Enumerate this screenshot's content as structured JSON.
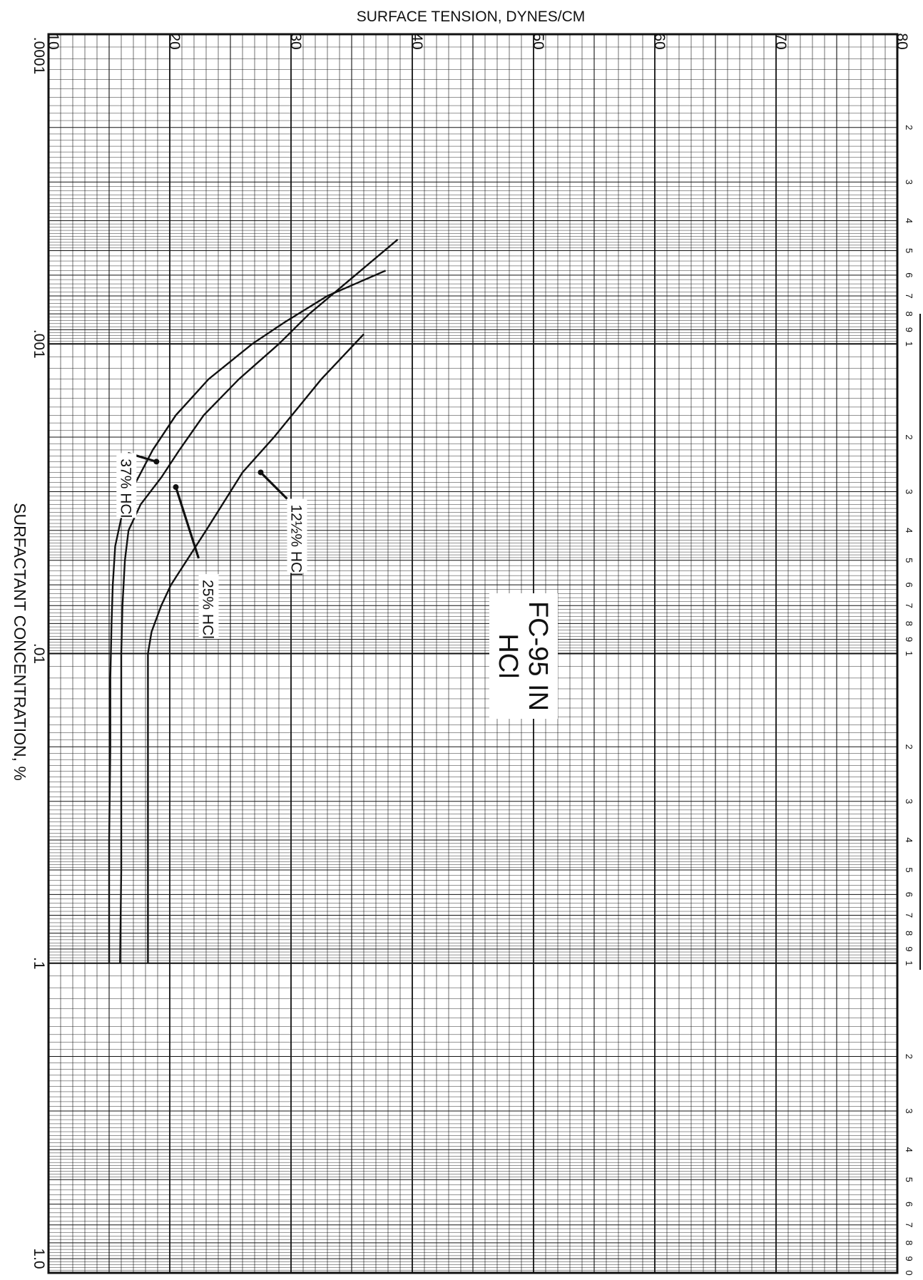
{
  "chart_data": {
    "type": "line",
    "title": "FC-95 IN HCl",
    "title_lines": [
      "FC-95 IN",
      "HCl"
    ],
    "xlabel": "SURFACTANT CONCENTRATION, %",
    "ylabel": "SURFACE TENSION, DYNES/CM",
    "x_scale": "log",
    "xlim": [
      0.0001,
      1.0
    ],
    "ylim": [
      10,
      80
    ],
    "x_tick_labels": [
      ".0001",
      ".001",
      ".01",
      ".1",
      "1.0"
    ],
    "x_tick_values": [
      0.0001,
      0.001,
      0.01,
      0.1,
      1.0
    ],
    "y_tick_labels": [
      "10",
      "20",
      "30",
      "40",
      "50",
      "60",
      "70",
      "80"
    ],
    "y_tick_values": [
      10,
      20,
      30,
      40,
      50,
      60,
      70,
      80
    ],
    "minor_cycle_labels": [
      "2",
      "3",
      "4",
      "5",
      "6",
      "7",
      "8",
      "9",
      "1"
    ],
    "last_cycle_end_label": "0",
    "grid": true,
    "orientation": "rotated 90° clockwise",
    "series": [
      {
        "name": "37% HCl",
        "x": [
          0.00058,
          0.0007,
          0.00085,
          0.001,
          0.0013,
          0.0017,
          0.0022,
          0.0028,
          0.0035,
          0.0045,
          0.006,
          0.008,
          0.012,
          0.02,
          0.04,
          0.1
        ],
        "y": [
          37.8,
          33.0,
          29.5,
          26.8,
          23.2,
          20.5,
          18.6,
          17.2,
          16.1,
          15.5,
          15.3,
          15.2,
          15.1,
          15.1,
          15.0,
          15.0
        ]
      },
      {
        "name": "25% HCl",
        "x": [
          0.00046,
          0.0006,
          0.0008,
          0.001,
          0.0013,
          0.0017,
          0.0022,
          0.0027,
          0.0033,
          0.004,
          0.005,
          0.007,
          0.01,
          0.02,
          0.05,
          0.1
        ],
        "y": [
          38.8,
          35.3,
          31.5,
          29.0,
          25.7,
          22.8,
          20.8,
          19.3,
          17.6,
          16.6,
          16.3,
          16.1,
          16.0,
          16.0,
          16.0,
          15.9
        ]
      },
      {
        "name": "12½% HCl",
        "x": [
          0.00093,
          0.0013,
          0.002,
          0.0026,
          0.004,
          0.006,
          0.007,
          0.0085,
          0.01,
          0.02,
          0.05,
          0.1
        ],
        "y": [
          36.0,
          32.5,
          28.6,
          26.0,
          23.0,
          20.1,
          19.3,
          18.5,
          18.2,
          18.2,
          18.2,
          18.2
        ]
      }
    ],
    "annotations": [
      {
        "text": "37% HCl",
        "series": "37% HCl",
        "x": 0.0024,
        "y": 18.9
      },
      {
        "text": "25% HCl",
        "series": "25% HCl",
        "x": 0.0029,
        "y": 20.5
      },
      {
        "text": "12½% HCl",
        "series": "12½% HCl",
        "x": 0.0026,
        "y": 27.5
      }
    ]
  }
}
